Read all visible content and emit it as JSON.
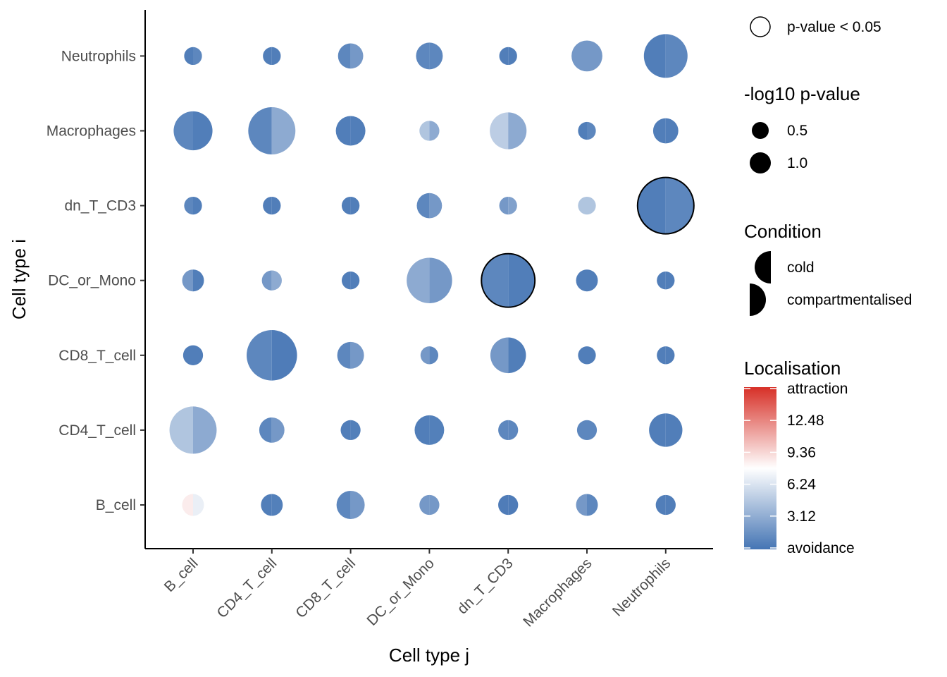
{
  "chart_data": {
    "type": "dotplot",
    "xlabel": "Cell type j",
    "ylabel": "Cell type i",
    "x_categories": [
      "B_cell",
      "CD4_T_cell",
      "CD8_T_cell",
      "DC_or_Mono",
      "dn_T_CD3",
      "Macrophages",
      "Neutrophils"
    ],
    "y_categories": [
      "B_cell",
      "CD4_T_cell",
      "CD8_T_cell",
      "DC_or_Mono",
      "dn_T_CD3",
      "Macrophages",
      "Neutrophils"
    ],
    "conditions": [
      "cold",
      "compartmentalised"
    ],
    "size_metric": "-log10 p-value",
    "color_metric": "Localisation",
    "cells": [
      {
        "i": "B_cell",
        "j": "B_cell",
        "log10p": 0.3,
        "cold": 8.5,
        "compartmentalised": 6.9,
        "significant": false
      },
      {
        "i": "B_cell",
        "j": "CD4_T_cell",
        "log10p": 0.3,
        "cold": 0.5,
        "compartmentalised": 0.6,
        "significant": false
      },
      {
        "i": "B_cell",
        "j": "CD8_T_cell",
        "log10p": 0.5,
        "cold": 1.0,
        "compartmentalised": 2.0,
        "significant": false
      },
      {
        "i": "B_cell",
        "j": "DC_or_Mono",
        "log10p": 0.25,
        "cold": 2.0,
        "compartmentalised": 2.0,
        "significant": false
      },
      {
        "i": "B_cell",
        "j": "dn_T_CD3",
        "log10p": 0.25,
        "cold": 0.4,
        "compartmentalised": 0.4,
        "significant": false
      },
      {
        "i": "B_cell",
        "j": "Macrophages",
        "log10p": 0.3,
        "cold": 2.0,
        "compartmentalised": 1.0,
        "significant": false
      },
      {
        "i": "B_cell",
        "j": "Neutrophils",
        "log10p": 0.25,
        "cold": 0.5,
        "compartmentalised": 0.5,
        "significant": false
      },
      {
        "i": "CD4_T_cell",
        "j": "B_cell",
        "log10p": 1.4,
        "cold": 4.5,
        "compartmentalised": 3.0,
        "significant": false
      },
      {
        "i": "CD4_T_cell",
        "j": "CD4_T_cell",
        "log10p": 0.4,
        "cold": 1.0,
        "compartmentalised": 2.0,
        "significant": false
      },
      {
        "i": "CD4_T_cell",
        "j": "CD8_T_cell",
        "log10p": 0.25,
        "cold": 0.5,
        "compartmentalised": 0.6,
        "significant": false
      },
      {
        "i": "CD4_T_cell",
        "j": "DC_or_Mono",
        "log10p": 0.55,
        "cold": 0.5,
        "compartmentalised": 0.6,
        "significant": false
      },
      {
        "i": "CD4_T_cell",
        "j": "dn_T_CD3",
        "log10p": 0.25,
        "cold": 1.0,
        "compartmentalised": 1.0,
        "significant": false
      },
      {
        "i": "CD4_T_cell",
        "j": "Macrophages",
        "log10p": 0.25,
        "cold": 1.0,
        "compartmentalised": 1.0,
        "significant": false
      },
      {
        "i": "CD4_T_cell",
        "j": "Neutrophils",
        "log10p": 0.7,
        "cold": 0.5,
        "compartmentalised": 0.5,
        "significant": false
      },
      {
        "i": "CD8_T_cell",
        "j": "B_cell",
        "log10p": 0.25,
        "cold": 0.5,
        "compartmentalised": 0.5,
        "significant": false
      },
      {
        "i": "CD8_T_cell",
        "j": "CD4_T_cell",
        "log10p": 1.6,
        "cold": 1.0,
        "compartmentalised": 0.4,
        "significant": false
      },
      {
        "i": "CD8_T_cell",
        "j": "CD8_T_cell",
        "log10p": 0.45,
        "cold": 1.0,
        "compartmentalised": 2.0,
        "significant": false
      },
      {
        "i": "CD8_T_cell",
        "j": "DC_or_Mono",
        "log10p": 0.2,
        "cold": 2.0,
        "compartmentalised": 1.0,
        "significant": false
      },
      {
        "i": "CD8_T_cell",
        "j": "dn_T_CD3",
        "log10p": 0.8,
        "cold": 2.0,
        "compartmentalised": 0.5,
        "significant": false
      },
      {
        "i": "CD8_T_cell",
        "j": "Macrophages",
        "log10p": 0.2,
        "cold": 0.5,
        "compartmentalised": 0.5,
        "significant": false
      },
      {
        "i": "CD8_T_cell",
        "j": "Neutrophils",
        "log10p": 0.2,
        "cold": 0.5,
        "compartmentalised": 0.5,
        "significant": false
      },
      {
        "i": "DC_or_Mono",
        "j": "B_cell",
        "log10p": 0.3,
        "cold": 2.0,
        "compartmentalised": 0.5,
        "significant": false
      },
      {
        "i": "DC_or_Mono",
        "j": "CD4_T_cell",
        "log10p": 0.25,
        "cold": 2.0,
        "compartmentalised": 3.0,
        "significant": false
      },
      {
        "i": "DC_or_Mono",
        "j": "CD8_T_cell",
        "log10p": 0.2,
        "cold": 0.5,
        "compartmentalised": 0.5,
        "significant": false
      },
      {
        "i": "DC_or_Mono",
        "j": "DC_or_Mono",
        "log10p": 1.3,
        "cold": 3.0,
        "compartmentalised": 2.0,
        "significant": false
      },
      {
        "i": "DC_or_Mono",
        "j": "dn_T_CD3",
        "log10p": 1.8,
        "cold": 1.0,
        "compartmentalised": 0.5,
        "significant": true
      },
      {
        "i": "DC_or_Mono",
        "j": "Macrophages",
        "log10p": 0.3,
        "cold": 0.5,
        "compartmentalised": 0.5,
        "significant": false
      },
      {
        "i": "DC_or_Mono",
        "j": "Neutrophils",
        "log10p": 0.2,
        "cold": 0.5,
        "compartmentalised": 0.5,
        "significant": false
      },
      {
        "i": "dn_T_CD3",
        "j": "B_cell",
        "log10p": 0.2,
        "cold": 1.0,
        "compartmentalised": 0.5,
        "significant": false
      },
      {
        "i": "dn_T_CD3",
        "j": "CD4_T_cell",
        "log10p": 0.2,
        "cold": 0.5,
        "compartmentalised": 0.5,
        "significant": false
      },
      {
        "i": "dn_T_CD3",
        "j": "CD8_T_cell",
        "log10p": 0.2,
        "cold": 0.5,
        "compartmentalised": 0.5,
        "significant": false
      },
      {
        "i": "dn_T_CD3",
        "j": "DC_or_Mono",
        "log10p": 0.4,
        "cold": 1.0,
        "compartmentalised": 2.0,
        "significant": false
      },
      {
        "i": "dn_T_CD3",
        "j": "dn_T_CD3",
        "log10p": 0.2,
        "cold": 2.0,
        "compartmentalised": 2.5,
        "significant": false
      },
      {
        "i": "dn_T_CD3",
        "j": "Macrophages",
        "log10p": 0.2,
        "cold": 4.5,
        "compartmentalised": 4.5,
        "significant": false
      },
      {
        "i": "dn_T_CD3",
        "j": "Neutrophils",
        "log10p": 2.0,
        "cold": 0.5,
        "compartmentalised": 1.0,
        "significant": true
      },
      {
        "i": "Macrophages",
        "j": "B_cell",
        "log10p": 0.95,
        "cold": 1.0,
        "compartmentalised": 0.5,
        "significant": false
      },
      {
        "i": "Macrophages",
        "j": "CD4_T_cell",
        "log10p": 1.4,
        "cold": 1.0,
        "compartmentalised": 3.0,
        "significant": false
      },
      {
        "i": "Macrophages",
        "j": "CD8_T_cell",
        "log10p": 0.55,
        "cold": 0.5,
        "compartmentalised": 0.5,
        "significant": false
      },
      {
        "i": "Macrophages",
        "j": "DC_or_Mono",
        "log10p": 0.25,
        "cold": 4.5,
        "compartmentalised": 3.0,
        "significant": false
      },
      {
        "i": "Macrophages",
        "j": "dn_T_CD3",
        "log10p": 0.85,
        "cold": 5.0,
        "compartmentalised": 3.0,
        "significant": false
      },
      {
        "i": "Macrophages",
        "j": "Macrophages",
        "log10p": 0.2,
        "cold": 0.5,
        "compartmentalised": 1.0,
        "significant": false
      },
      {
        "i": "Macrophages",
        "j": "Neutrophils",
        "log10p": 0.4,
        "cold": 0.5,
        "compartmentalised": 0.5,
        "significant": false
      },
      {
        "i": "Neutrophils",
        "j": "B_cell",
        "log10p": 0.2,
        "cold": 0.5,
        "compartmentalised": 1.0,
        "significant": false
      },
      {
        "i": "Neutrophils",
        "j": "CD4_T_cell",
        "log10p": 0.2,
        "cold": 0.5,
        "compartmentalised": 0.5,
        "significant": false
      },
      {
        "i": "Neutrophils",
        "j": "CD8_T_cell",
        "log10p": 0.4,
        "cold": 1.0,
        "compartmentalised": 2.0,
        "significant": false
      },
      {
        "i": "Neutrophils",
        "j": "DC_or_Mono",
        "log10p": 0.45,
        "cold": 1.0,
        "compartmentalised": 1.0,
        "significant": false
      },
      {
        "i": "Neutrophils",
        "j": "dn_T_CD3",
        "log10p": 0.2,
        "cold": 0.5,
        "compartmentalised": 0.5,
        "significant": false
      },
      {
        "i": "Neutrophils",
        "j": "Macrophages",
        "log10p": 0.6,
        "cold": 2.0,
        "compartmentalised": 2.0,
        "significant": false
      },
      {
        "i": "Neutrophils",
        "j": "Neutrophils",
        "log10p": 1.2,
        "cold": 0.5,
        "compartmentalised": 1.0,
        "significant": false
      }
    ],
    "legends": {
      "significance": {
        "label": "p-value < 0.05"
      },
      "size": {
        "title": "-log10 p-value",
        "entries": [
          {
            "value": 0.5,
            "label": "0.5"
          },
          {
            "value": 1.0,
            "label": "1.0"
          }
        ]
      },
      "condition": {
        "title": "Condition",
        "entries": [
          {
            "label": "cold",
            "side": "left"
          },
          {
            "label": "compartmentalised",
            "side": "right"
          }
        ]
      },
      "color": {
        "title": "Localisation",
        "min": 0,
        "max": 15.6,
        "low_color": "#4575b4",
        "mid_color": "#ffffff",
        "high_color": "#d73027",
        "mid_value": 7.8,
        "tick_labels": [
          {
            "value": 15.6,
            "label": "attraction"
          },
          {
            "value": 12.48,
            "label": "12.48"
          },
          {
            "value": 9.36,
            "label": "9.36"
          },
          {
            "value": 6.24,
            "label": "6.24"
          },
          {
            "value": 3.12,
            "label": "3.12"
          },
          {
            "value": 0,
            "label": "avoidance"
          }
        ]
      }
    }
  }
}
